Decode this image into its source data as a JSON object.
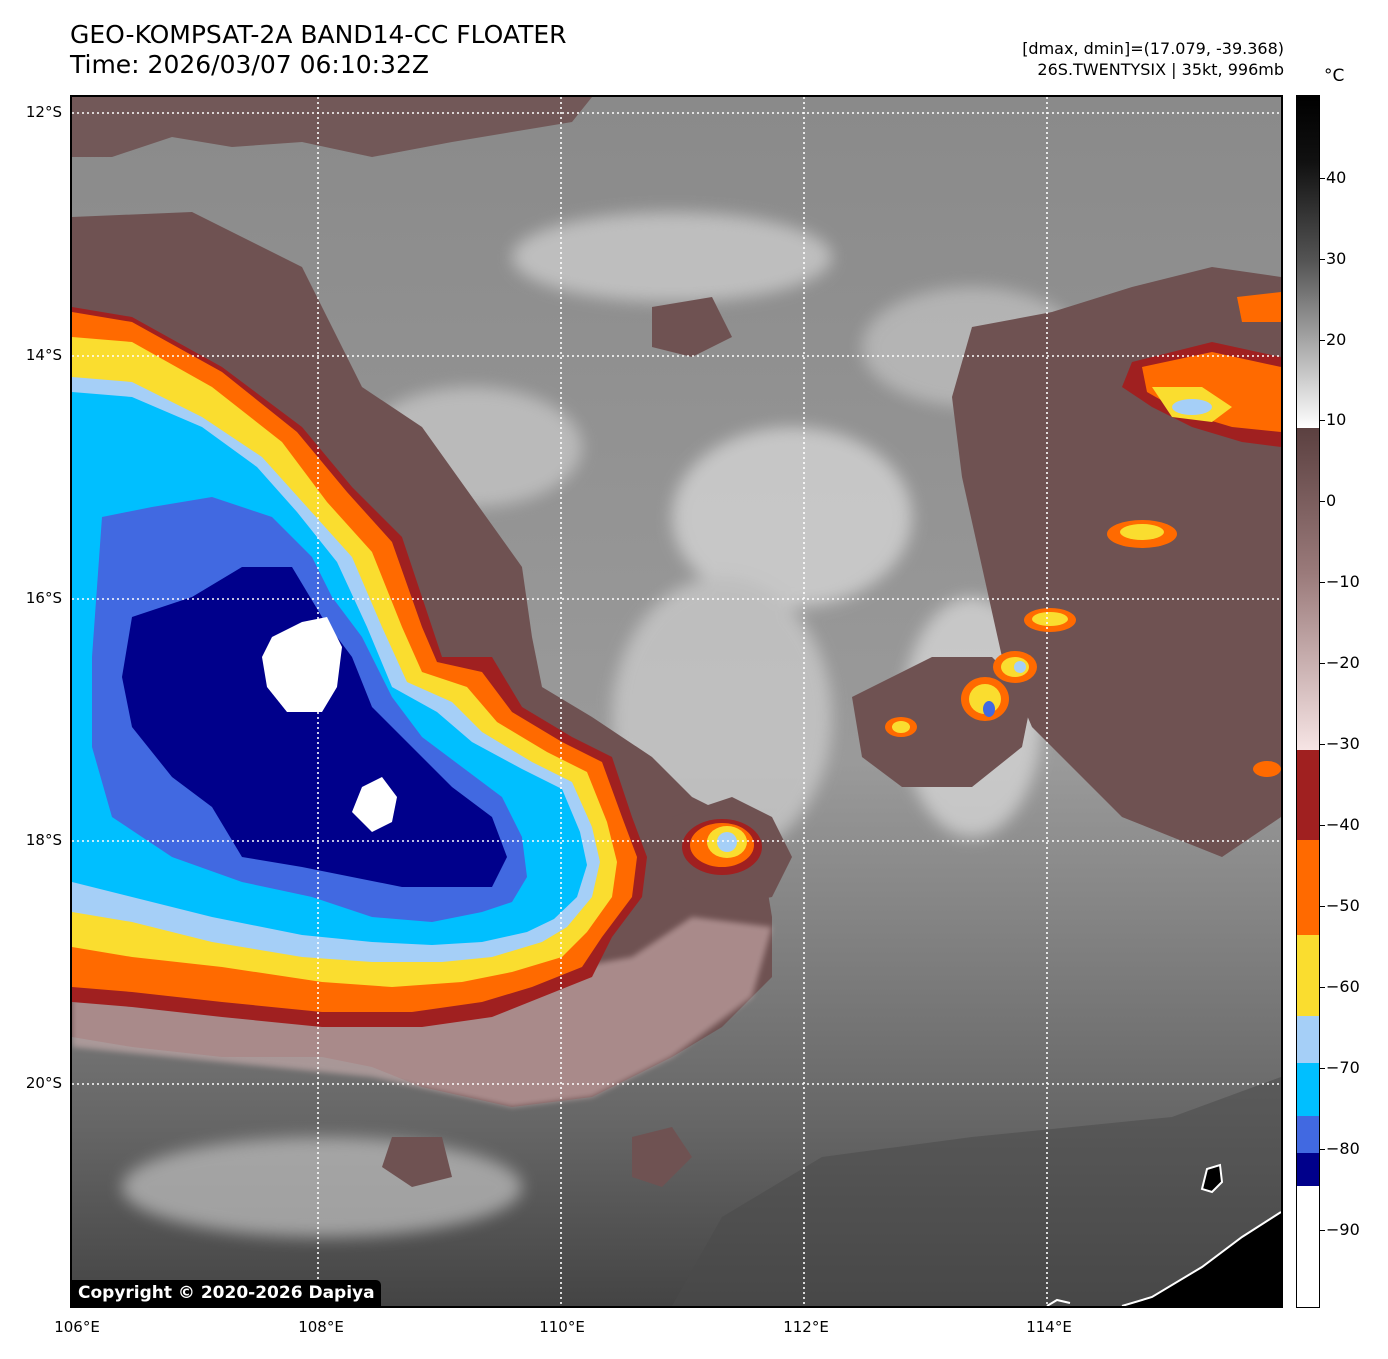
{
  "header": {
    "title_line1": "GEO-KOMPSAT-2A BAND14-CC FLOATER",
    "title_line2": "Time: 2026/03/07 06:10:32Z",
    "info_line1": "[dmax, dmin]=(17.079, -39.368)",
    "info_line2": "26S.TWENTYSIX | 35kt, 996mb"
  },
  "map": {
    "lat_labels": [
      "12°S",
      "14°S",
      "16°S",
      "18°S",
      "20°S"
    ],
    "lon_labels": [
      "106°E",
      "108°E",
      "110°E",
      "112°E",
      "114°E"
    ],
    "copyright": "Copyright © 2020-2026 Dapiya"
  },
  "colorbar": {
    "unit": "°C",
    "ticks": [
      "40",
      "30",
      "20",
      "10",
      "0",
      "−10",
      "−20",
      "−30",
      "−40",
      "−50",
      "−60",
      "−70",
      "−80",
      "−90"
    ],
    "range": [
      -100,
      50
    ],
    "colors": {
      "above_10": "#101010",
      "warm_brown": "#6b5050",
      "pink": "#f3d8d8",
      "dark_red": "#a02020",
      "orange": "#ff6a00",
      "yellow": "#fadd2f",
      "light_blue": "#a5cff7",
      "cyan": "#00bfff",
      "royal_blue": "#4169e1",
      "navy": "#00008b",
      "white": "#ffffff"
    }
  }
}
